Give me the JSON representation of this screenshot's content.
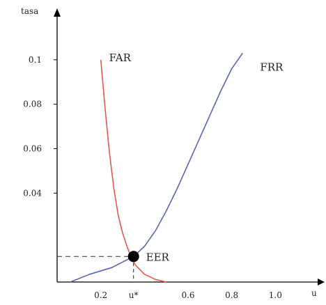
{
  "chart_data": {
    "type": "line",
    "title": "",
    "ylabel": "tasa",
    "xlabel": "u",
    "xlim": [
      0,
      1.2
    ],
    "ylim": [
      0,
      0.12
    ],
    "grid": false,
    "legend": "none",
    "x_ticks": [
      {
        "value": 0.2,
        "label": "0.2"
      },
      {
        "value": 0.35,
        "label": "u*"
      },
      {
        "value": 0.6,
        "label": "0.6"
      },
      {
        "value": 0.8,
        "label": "0.8"
      },
      {
        "value": 1.0,
        "label": "1.0"
      }
    ],
    "y_ticks": [
      {
        "value": 0.1,
        "label": "0.1"
      },
      {
        "value": 0.08,
        "label": "0.08"
      },
      {
        "value": 0.06,
        "label": "0.06"
      },
      {
        "value": 0.04,
        "label": "0.04"
      }
    ],
    "series": [
      {
        "name": "FAR",
        "color": "#e05a4a",
        "x": [
          0.2,
          0.22,
          0.24,
          0.26,
          0.28,
          0.3,
          0.32,
          0.34,
          0.36,
          0.4,
          0.45,
          0.5
        ],
        "y": [
          0.1,
          0.078,
          0.058,
          0.042,
          0.03,
          0.022,
          0.016,
          0.011,
          0.0075,
          0.0035,
          0.0012,
          0.0
        ]
      },
      {
        "name": "FRR",
        "color": "#5b62b8",
        "x": [
          0.06,
          0.15,
          0.25,
          0.35,
          0.4,
          0.45,
          0.5,
          0.55,
          0.6,
          0.65,
          0.7,
          0.75,
          0.8,
          0.85
        ],
        "y": [
          0.0,
          0.0035,
          0.0065,
          0.0115,
          0.016,
          0.023,
          0.032,
          0.042,
          0.053,
          0.064,
          0.075,
          0.086,
          0.096,
          0.103
        ]
      }
    ],
    "eer_point": {
      "label": "EER",
      "x": 0.35,
      "y": 0.0115,
      "color": "#000000"
    }
  }
}
